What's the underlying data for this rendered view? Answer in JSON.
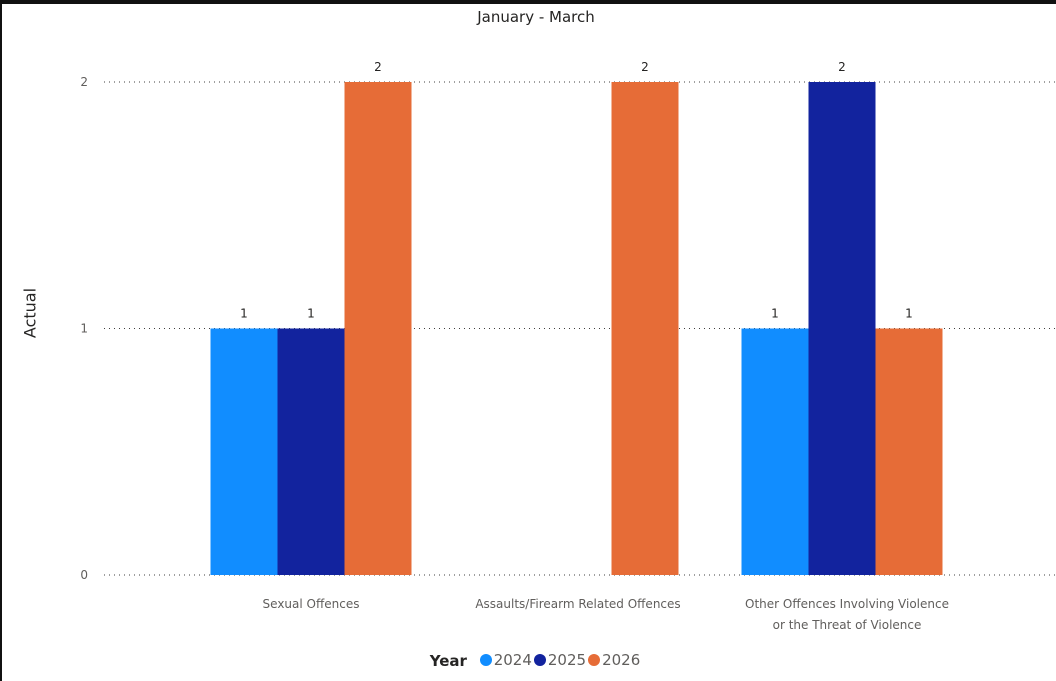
{
  "chart_data": {
    "type": "bar",
    "title": "January - March",
    "xlabel": "",
    "ylabel": "Actual",
    "ylim": [
      0,
      2
    ],
    "yticks": [
      0,
      1,
      2
    ],
    "grid": true,
    "legend_position": "bottom",
    "legend_title": "Year",
    "categories": [
      [
        "Sexual Offences"
      ],
      [
        "Assaults/Firearm Related Offences"
      ],
      [
        "Other Offences Involving Violence",
        "or the Threat of Violence"
      ]
    ],
    "series": [
      {
        "name": "2024",
        "color": "#118dff",
        "values": [
          1,
          null,
          1
        ]
      },
      {
        "name": "2025",
        "color": "#12239e",
        "values": [
          1,
          null,
          2
        ]
      },
      {
        "name": "2026",
        "color": "#e66c37",
        "values": [
          2,
          2,
          1
        ]
      }
    ]
  }
}
